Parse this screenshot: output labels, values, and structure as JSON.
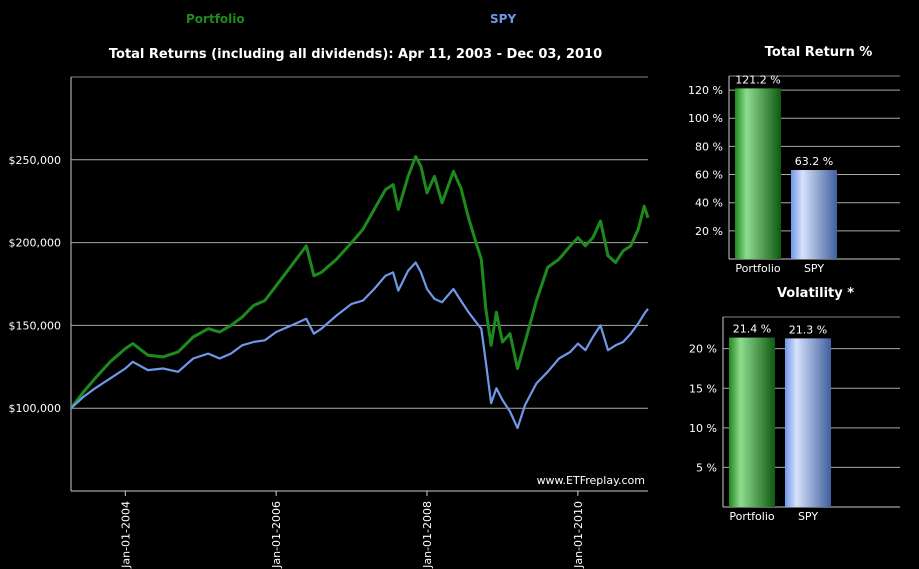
{
  "legend": [
    {
      "name": "Portfolio",
      "color": "#1e8a1e"
    },
    {
      "name": "SPY",
      "color": "#6f98e8"
    }
  ],
  "chart_data": [
    {
      "type": "line",
      "title": "Total Returns (including all dividends): Apr 11, 2003 - Dec 03, 2010",
      "ylabel": "",
      "xlabel": "",
      "ylim": [
        50000,
        300000
      ],
      "yticks": [
        100000,
        150000,
        200000,
        250000
      ],
      "ytick_labels": [
        "$100,000",
        "$150,000",
        "$200,000",
        "$250,000"
      ],
      "xlim": [
        2003.28,
        2010.93
      ],
      "xticks": [
        2004,
        2006,
        2008,
        2010
      ],
      "xtick_labels": [
        "Jan-01-2004",
        "Jan-01-2006",
        "Jan-01-2008",
        "Jan-01-2010"
      ],
      "watermark": "www.ETFreplay.com",
      "series": [
        {
          "name": "Portfolio",
          "color": "#1e8a1e",
          "points": [
            [
              2003.28,
              100000
            ],
            [
              2003.45,
              110000
            ],
            [
              2003.6,
              118000
            ],
            [
              2003.8,
              128000
            ],
            [
              2004.0,
              136000
            ],
            [
              2004.1,
              139000
            ],
            [
              2004.3,
              132000
            ],
            [
              2004.5,
              131000
            ],
            [
              2004.7,
              134000
            ],
            [
              2004.9,
              143000
            ],
            [
              2005.1,
              148000
            ],
            [
              2005.25,
              146000
            ],
            [
              2005.4,
              150000
            ],
            [
              2005.55,
              155000
            ],
            [
              2005.7,
              162000
            ],
            [
              2005.85,
              165000
            ],
            [
              2006.0,
              174000
            ],
            [
              2006.15,
              183000
            ],
            [
              2006.3,
              192000
            ],
            [
              2006.4,
              198000
            ],
            [
              2006.5,
              180000
            ],
            [
              2006.6,
              182000
            ],
            [
              2006.8,
              190000
            ],
            [
              2007.0,
              200000
            ],
            [
              2007.15,
              208000
            ],
            [
              2007.3,
              220000
            ],
            [
              2007.45,
              232000
            ],
            [
              2007.55,
              235000
            ],
            [
              2007.62,
              220000
            ],
            [
              2007.75,
              240000
            ],
            [
              2007.85,
              252000
            ],
            [
              2007.92,
              246000
            ],
            [
              2008.0,
              230000
            ],
            [
              2008.1,
              240000
            ],
            [
              2008.2,
              224000
            ],
            [
              2008.35,
              243000
            ],
            [
              2008.45,
              233000
            ],
            [
              2008.55,
              215000
            ],
            [
              2008.65,
              200000
            ],
            [
              2008.72,
              190000
            ],
            [
              2008.78,
              160000
            ],
            [
              2008.85,
              138000
            ],
            [
              2008.92,
              158000
            ],
            [
              2009.0,
              140000
            ],
            [
              2009.1,
              145000
            ],
            [
              2009.2,
              124000
            ],
            [
              2009.3,
              140000
            ],
            [
              2009.45,
              165000
            ],
            [
              2009.6,
              185000
            ],
            [
              2009.75,
              190000
            ],
            [
              2009.9,
              198000
            ],
            [
              2010.0,
              203000
            ],
            [
              2010.1,
              198000
            ],
            [
              2010.2,
              203000
            ],
            [
              2010.3,
              213000
            ],
            [
              2010.4,
              192000
            ],
            [
              2010.5,
              188000
            ],
            [
              2010.6,
              195000
            ],
            [
              2010.7,
              198000
            ],
            [
              2010.8,
              208000
            ],
            [
              2010.88,
              222000
            ],
            [
              2010.93,
              215000
            ]
          ]
        },
        {
          "name": "SPY",
          "color": "#6f98e8",
          "points": [
            [
              2003.28,
              100000
            ],
            [
              2003.45,
              107000
            ],
            [
              2003.6,
              112000
            ],
            [
              2003.8,
              118000
            ],
            [
              2004.0,
              124000
            ],
            [
              2004.1,
              128000
            ],
            [
              2004.3,
              123000
            ],
            [
              2004.5,
              124000
            ],
            [
              2004.7,
              122000
            ],
            [
              2004.9,
              130000
            ],
            [
              2005.1,
              133000
            ],
            [
              2005.25,
              130000
            ],
            [
              2005.4,
              133000
            ],
            [
              2005.55,
              138000
            ],
            [
              2005.7,
              140000
            ],
            [
              2005.85,
              141000
            ],
            [
              2006.0,
              146000
            ],
            [
              2006.15,
              149000
            ],
            [
              2006.3,
              152000
            ],
            [
              2006.4,
              154000
            ],
            [
              2006.5,
              145000
            ],
            [
              2006.6,
              148000
            ],
            [
              2006.8,
              156000
            ],
            [
              2007.0,
              163000
            ],
            [
              2007.15,
              165000
            ],
            [
              2007.3,
              172000
            ],
            [
              2007.45,
              180000
            ],
            [
              2007.55,
              182000
            ],
            [
              2007.62,
              171000
            ],
            [
              2007.75,
              183000
            ],
            [
              2007.85,
              188000
            ],
            [
              2007.92,
              182000
            ],
            [
              2008.0,
              172000
            ],
            [
              2008.1,
              166000
            ],
            [
              2008.2,
              164000
            ],
            [
              2008.35,
              172000
            ],
            [
              2008.45,
              165000
            ],
            [
              2008.55,
              158000
            ],
            [
              2008.65,
              152000
            ],
            [
              2008.72,
              148000
            ],
            [
              2008.78,
              128000
            ],
            [
              2008.85,
              103000
            ],
            [
              2008.92,
              112000
            ],
            [
              2009.0,
              105000
            ],
            [
              2009.1,
              98000
            ],
            [
              2009.2,
              88000
            ],
            [
              2009.3,
              102000
            ],
            [
              2009.45,
              115000
            ],
            [
              2009.6,
              122000
            ],
            [
              2009.75,
              130000
            ],
            [
              2009.9,
              134000
            ],
            [
              2010.0,
              139000
            ],
            [
              2010.1,
              135000
            ],
            [
              2010.2,
              143000
            ],
            [
              2010.3,
              150000
            ],
            [
              2010.4,
              135000
            ],
            [
              2010.5,
              138000
            ],
            [
              2010.6,
              140000
            ],
            [
              2010.7,
              145000
            ],
            [
              2010.8,
              151000
            ],
            [
              2010.88,
              157000
            ],
            [
              2010.93,
              160000
            ]
          ]
        }
      ]
    },
    {
      "type": "bar",
      "title": "Total Return %",
      "categories": [
        "Portfolio",
        "SPY"
      ],
      "values": [
        121.2,
        63.2
      ],
      "value_labels": [
        "121.2 %",
        "63.2 %"
      ],
      "colors": [
        "#1e8a1e",
        "#6f98e8"
      ],
      "ylim": [
        0,
        130
      ],
      "yticks": [
        20,
        40,
        60,
        80,
        100,
        120
      ],
      "ytick_labels": [
        "20 %",
        "40 %",
        "60 %",
        "80 %",
        "100 %",
        "120 %"
      ]
    },
    {
      "type": "bar",
      "title": "Volatility *",
      "categories": [
        "Portfolio",
        "SPY"
      ],
      "values": [
        21.4,
        21.3
      ],
      "value_labels": [
        "21.4 %",
        "21.3 %"
      ],
      "colors": [
        "#1e8a1e",
        "#6f98e8"
      ],
      "ylim": [
        0,
        24
      ],
      "yticks": [
        5,
        10,
        15,
        20
      ],
      "ytick_labels": [
        "5 %",
        "10 %",
        "15 %",
        "20 %"
      ]
    }
  ]
}
